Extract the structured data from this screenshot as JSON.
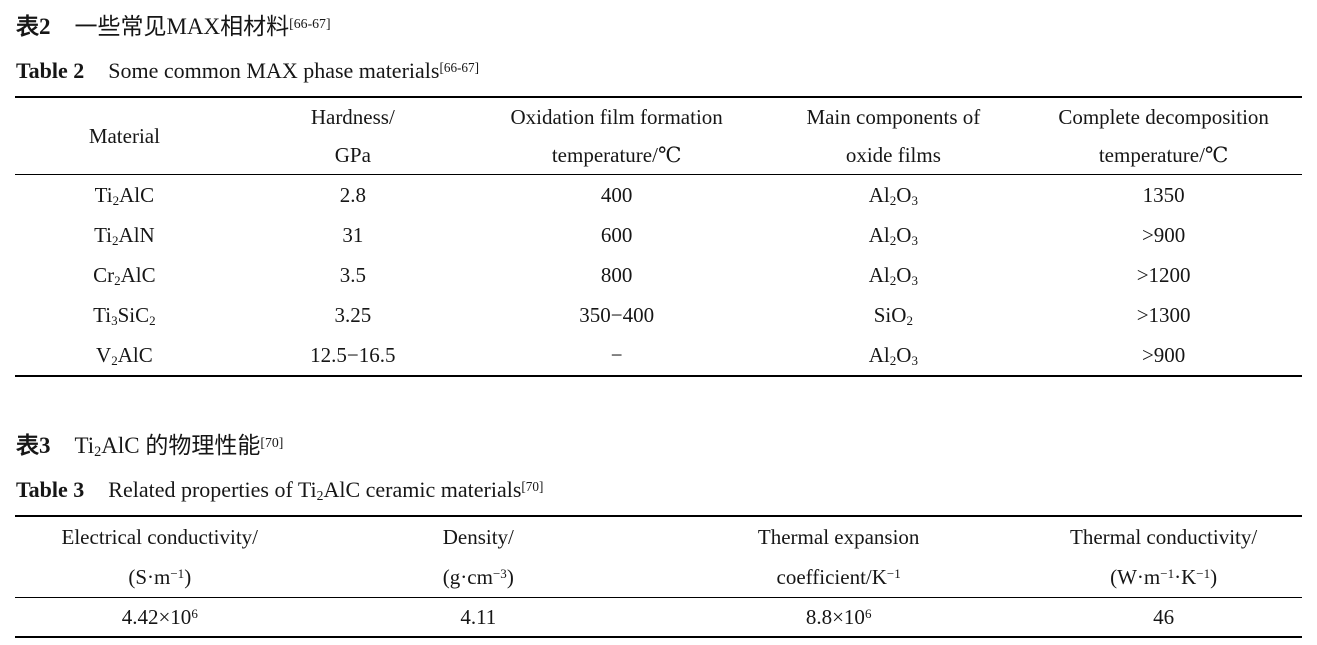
{
  "table2": {
    "caption_zh": {
      "label": "表2",
      "text": "一些常见MAX相材料",
      "ref": "[66-67]"
    },
    "caption_en": {
      "label": "Table 2",
      "text": "Some common MAX phase materials",
      "ref": "[66-67]"
    },
    "headers": [
      {
        "l1": "Material",
        "l2": ""
      },
      {
        "l1": "Hardness/",
        "l2": "GPa"
      },
      {
        "l1": "Oxidation film formation",
        "l2": "temperature/℃"
      },
      {
        "l1": "Main components of",
        "l2": "oxide films"
      },
      {
        "l1": "Complete decomposition",
        "l2": "temperature/℃"
      }
    ],
    "rows": [
      [
        "Ti_{2}AlC",
        "2.8",
        "400",
        "Al_{2}O_{3}",
        "1350"
      ],
      [
        "Ti_{2}AlN",
        "31",
        "600",
        "Al_{2}O_{3}",
        ">900"
      ],
      [
        "Cr_{2}AlC",
        "3.5",
        "800",
        "Al_{2}O_{3}",
        ">1200"
      ],
      [
        "Ti_{3}SiC_{2}",
        "3.25",
        "350−400",
        "SiO_{2}",
        ">1300"
      ],
      [
        "V_{2}AlC",
        "12.5−16.5",
        "−",
        "Al_{2}O_{3}",
        ">900"
      ]
    ]
  },
  "table3": {
    "caption_zh": {
      "label": "表3",
      "text": "Ti_{2}AlC 的物理性能",
      "ref": "[70]"
    },
    "caption_en": {
      "label": "Table 3",
      "text": "Related properties of Ti_{2}AlC ceramic materials",
      "ref": "[70]"
    },
    "headers": [
      {
        "l1": "Electrical conductivity/",
        "l2": "(S·m^{−1})"
      },
      {
        "l1": "Density/",
        "l2": "(g·cm^{−3})"
      },
      {
        "l1": "Thermal expansion",
        "l2": "coefficient/K^{−1}"
      },
      {
        "l1": "Thermal conductivity/",
        "l2": "(W·m^{−1}·K^{−1})"
      }
    ],
    "rows": [
      [
        "4.42×10^{6}",
        "4.11",
        "8.8×10^{6}",
        "46"
      ]
    ]
  }
}
